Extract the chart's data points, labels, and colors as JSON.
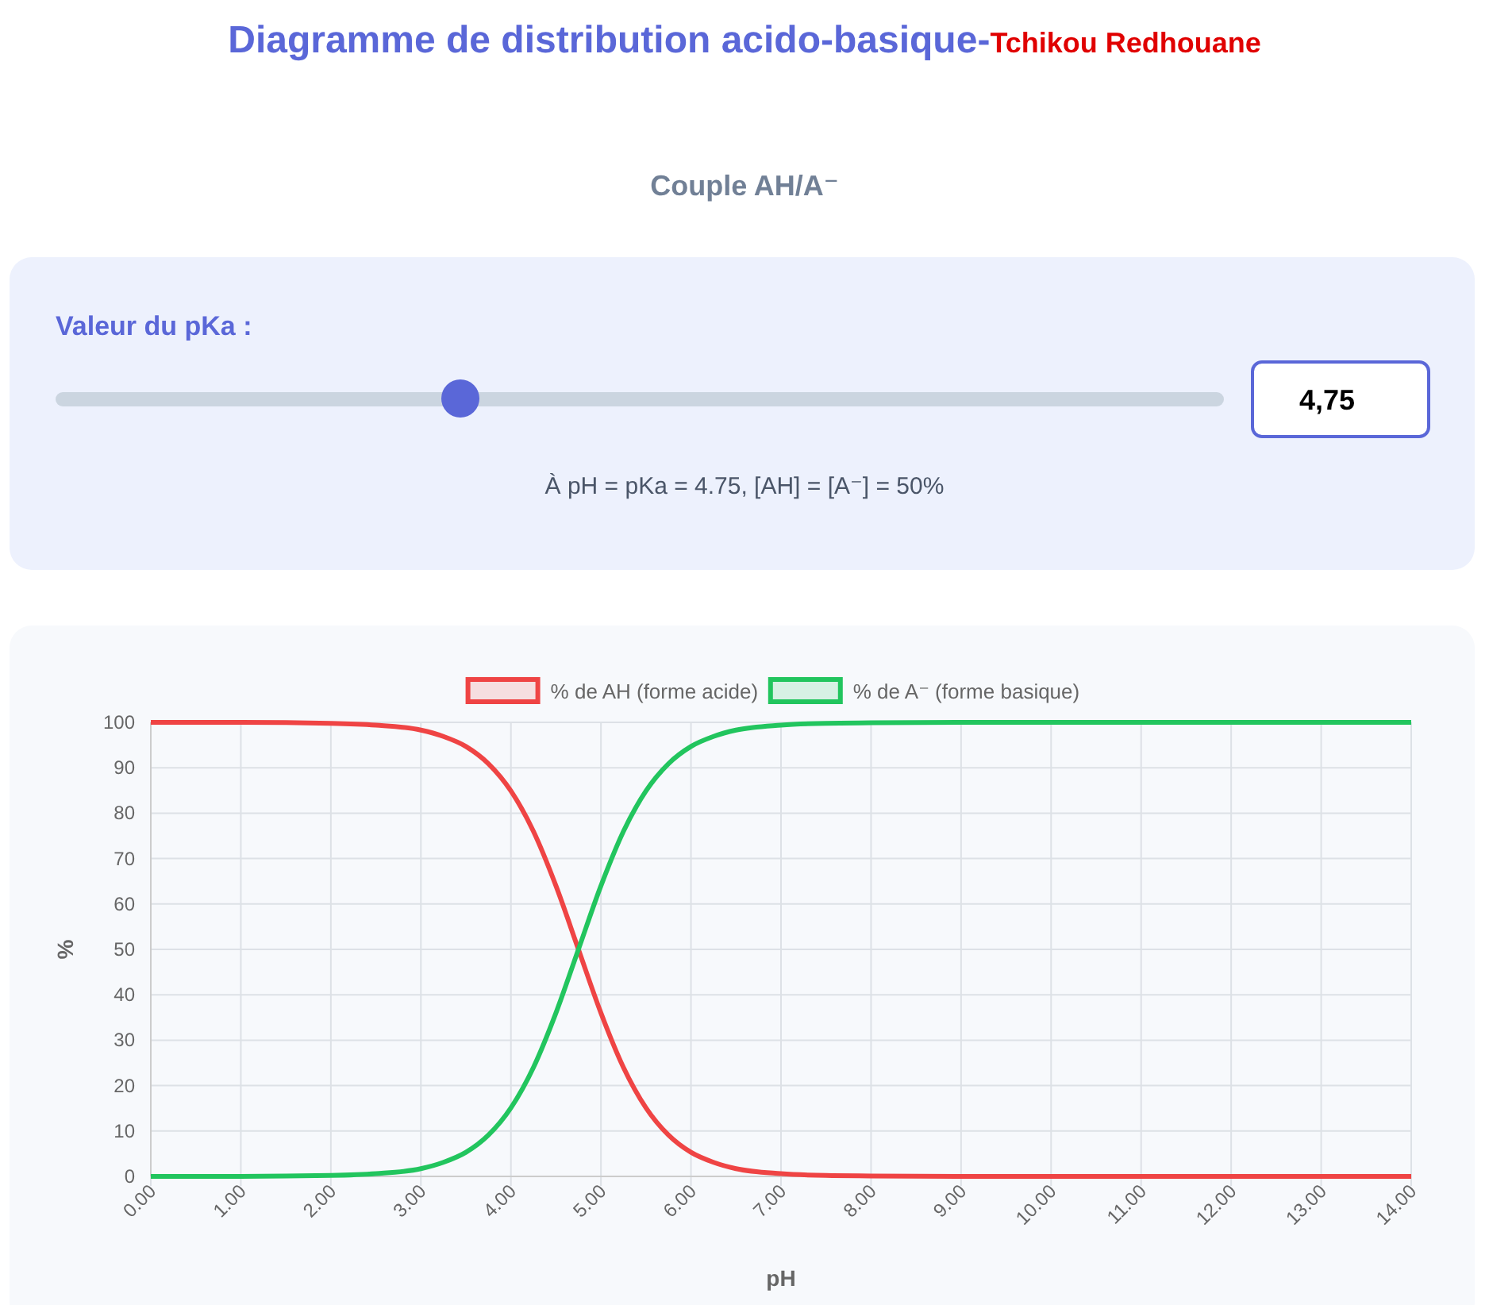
{
  "chart_data": {
    "type": "line",
    "title": "Diagramme de distribution acido-basique-",
    "subtitle": "Couple AH/A⁻",
    "xlabel": "pH",
    "ylabel": "%",
    "annotations": [
      "Tchikou Redhouane",
      "Valeur du pKa :",
      "4,75",
      "À pH = pKa = 4.75, [AH] = [A⁻] = 50%"
    ],
    "x": [
      0,
      1,
      2,
      2.5,
      3,
      3.25,
      3.5,
      3.75,
      4,
      4.25,
      4.5,
      4.75,
      5,
      5.25,
      5.5,
      5.75,
      6,
      6.25,
      6.5,
      7,
      7.5,
      8,
      9,
      10,
      11,
      12,
      13,
      14
    ],
    "series": [
      {
        "name": "% de AH (forme acide)",
        "color": "#ef4444",
        "values": [
          100,
          100,
          99.8,
          99.4,
          98.3,
          96.9,
          94.7,
          90.9,
          84.9,
          76.0,
          64.0,
          50,
          36.0,
          24.0,
          15.1,
          9.1,
          5.3,
          3.1,
          1.7,
          0.6,
          0.2,
          0.1,
          0,
          0,
          0,
          0,
          0,
          0
        ]
      },
      {
        "name": "% de A⁻ (forme basique)",
        "color": "#22c55e",
        "values": [
          0,
          0,
          0.2,
          0.6,
          1.7,
          3.1,
          5.3,
          9.1,
          15.1,
          24.0,
          36.0,
          50,
          64.0,
          76.0,
          84.9,
          90.9,
          94.7,
          96.9,
          98.3,
          99.4,
          99.8,
          99.9,
          100,
          100,
          100,
          100,
          100,
          100
        ]
      }
    ],
    "xlim": [
      0,
      14
    ],
    "xticks": [
      {
        "value": 0,
        "label": "0.00"
      },
      {
        "value": 1,
        "label": "1.00"
      },
      {
        "value": 2,
        "label": "2.00"
      },
      {
        "value": 3,
        "label": "3.00"
      },
      {
        "value": 4,
        "label": "4.00"
      },
      {
        "value": 5,
        "label": "5.00"
      },
      {
        "value": 6,
        "label": "6.00"
      },
      {
        "value": 7,
        "label": "7.00"
      },
      {
        "value": 8,
        "label": "8.00"
      },
      {
        "value": 9,
        "label": "9.00"
      },
      {
        "value": 10,
        "label": "10.00"
      },
      {
        "value": 11,
        "label": "11.00"
      },
      {
        "value": 12,
        "label": "12.00"
      },
      {
        "value": 13,
        "label": "13.00"
      },
      {
        "value": 14,
        "label": "14.00"
      }
    ],
    "ylim": [
      0,
      100
    ],
    "yticks": [
      0,
      10,
      20,
      30,
      40,
      50,
      60,
      70,
      80,
      90,
      100
    ],
    "grid": true,
    "legend": "top",
    "marker": "none",
    "line_style": "solid"
  }
}
